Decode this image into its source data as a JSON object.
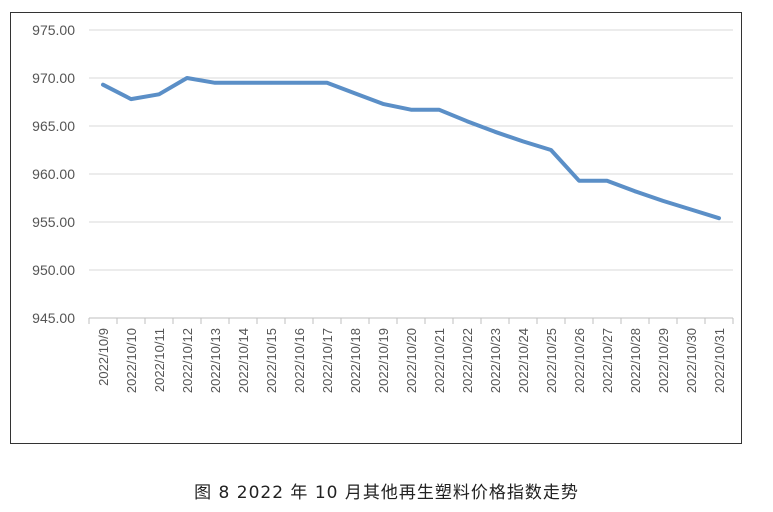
{
  "caption": "图 8  2022 年 10 月其他再生塑料价格指数走势",
  "chart_data": {
    "type": "line",
    "title": "",
    "xlabel": "",
    "ylabel": "",
    "ylim": [
      945,
      975
    ],
    "yticks": [
      "945.00",
      "950.00",
      "955.00",
      "960.00",
      "965.00",
      "970.00",
      "975.00"
    ],
    "grid": true,
    "categories": [
      "2022/10/9",
      "2022/10/10",
      "2022/10/11",
      "2022/10/12",
      "2022/10/13",
      "2022/10/14",
      "2022/10/15",
      "2022/10/16",
      "2022/10/17",
      "2022/10/18",
      "2022/10/19",
      "2022/10/20",
      "2022/10/21",
      "2022/10/22",
      "2022/10/23",
      "2022/10/24",
      "2022/10/25",
      "2022/10/26",
      "2022/10/27",
      "2022/10/28",
      "2022/10/29",
      "2022/10/30",
      "2022/10/31"
    ],
    "series": [
      {
        "values": [
          969.3,
          967.8,
          968.3,
          970.0,
          969.5,
          969.5,
          969.5,
          969.5,
          969.5,
          968.4,
          967.3,
          966.7,
          966.7,
          965.5,
          964.4,
          963.4,
          962.5,
          959.3,
          959.3,
          958.2,
          957.2,
          956.3,
          955.4
        ],
        "color": "#5b8fc7"
      }
    ]
  }
}
